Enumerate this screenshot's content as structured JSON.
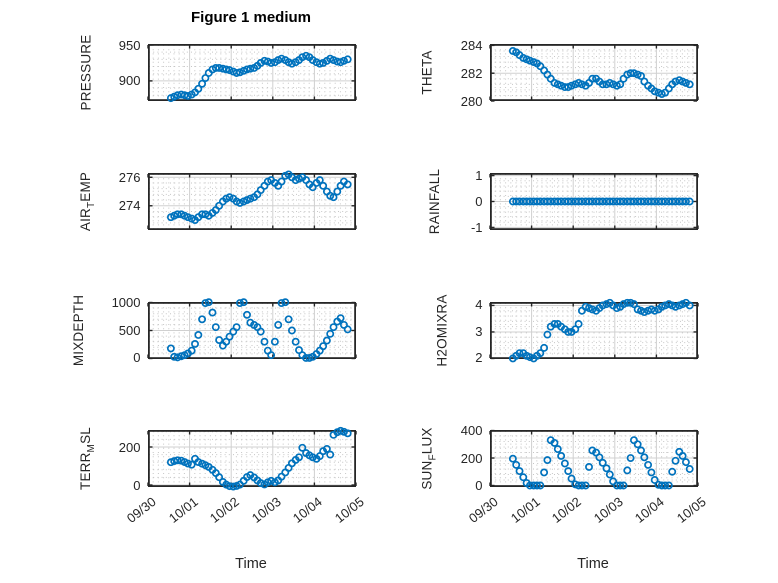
{
  "figure": {
    "title": "Figure 1 medium",
    "xlabel": "Time",
    "background": "#ffffff"
  },
  "style": {
    "marker_color": "#0072BD",
    "axes_color": "#262626",
    "major_grid_color": "#d0d0d0",
    "minor_grid_color": "#c6c6c6",
    "text_color": "#262626",
    "plot_background": "#ffffff"
  },
  "chart_data": {
    "type": "scatter",
    "title": "Figure 1 medium",
    "xlabel": "Time",
    "marker": "o",
    "grid": "major solid + minor dotted",
    "x_tick_labels": [
      "09/30",
      "10/01",
      "10/02",
      "10/03",
      "10/04",
      "10/05"
    ],
    "x_tick_values": [
      0,
      1,
      2,
      3,
      4,
      5
    ],
    "xlim": [
      0,
      5
    ],
    "x_minor_step": 0.125,
    "x_unit": "days since 09/30",
    "x": [
      0.55,
      0.63,
      0.71,
      0.8,
      0.88,
      0.96,
      1.05,
      1.13,
      1.21,
      1.3,
      1.38,
      1.46,
      1.55,
      1.63,
      1.71,
      1.8,
      1.88,
      1.96,
      2.05,
      2.13,
      2.21,
      2.3,
      2.38,
      2.46,
      2.55,
      2.63,
      2.71,
      2.8,
      2.88,
      2.96,
      3.05,
      3.13,
      3.21,
      3.3,
      3.38,
      3.46,
      3.55,
      3.63,
      3.71,
      3.8,
      3.88,
      3.96,
      4.05,
      4.13,
      4.21,
      4.3,
      4.38,
      4.46,
      4.55,
      4.63,
      4.71,
      4.8
    ],
    "subplots": [
      {
        "id": "pressure",
        "label": "PRESSURE",
        "label_parts": [
          {
            "text": "PRESSURE",
            "sub": false
          }
        ],
        "row": 0,
        "col": 0,
        "ylim": [
          872,
          951.4
        ],
        "yticks": [
          900,
          950
        ],
        "y": [
          876,
          878,
          880,
          881,
          880,
          879,
          881,
          884,
          889,
          896,
          904,
          911,
          916,
          918,
          918,
          917,
          916,
          915,
          913,
          911,
          912,
          914,
          916,
          917,
          918,
          921,
          925,
          928,
          927,
          925,
          926,
          929,
          931,
          929,
          926,
          924,
          926,
          929,
          933,
          935,
          933,
          929,
          926,
          924,
          925,
          928,
          931,
          929,
          927,
          926,
          928,
          930
        ]
      },
      {
        "id": "theta",
        "label": "THETA",
        "label_parts": [
          {
            "text": "THETA",
            "sub": false
          }
        ],
        "row": 0,
        "col": 1,
        "ylim": [
          280,
          284.1
        ],
        "yticks": [
          280,
          282,
          284
        ],
        "y": [
          283.6,
          283.5,
          283.3,
          283.1,
          283.0,
          282.9,
          282.8,
          282.7,
          282.5,
          282.2,
          281.9,
          281.6,
          281.3,
          281.2,
          281.1,
          281.0,
          281.0,
          281.1,
          281.2,
          281.3,
          281.2,
          281.1,
          281.3,
          281.6,
          281.6,
          281.4,
          281.2,
          281.2,
          281.3,
          281.2,
          281.1,
          281.2,
          281.6,
          281.9,
          282.0,
          282.0,
          281.9,
          281.8,
          281.4,
          281.1,
          280.9,
          280.7,
          280.6,
          280.5,
          280.6,
          280.9,
          281.2,
          281.4,
          281.5,
          281.4,
          281.3,
          281.2
        ]
      },
      {
        "id": "air-temp",
        "label": "AIR_TEMP",
        "label_parts": [
          {
            "text": "AIR",
            "sub": false
          },
          {
            "text": "T",
            "sub": true
          },
          {
            "text": "EMP",
            "sub": false
          }
        ],
        "row": 1,
        "col": 0,
        "ylim": [
          272.3,
          276.3
        ],
        "yticks": [
          274,
          276
        ],
        "y": [
          273.2,
          273.3,
          273.4,
          273.4,
          273.3,
          273.2,
          273.1,
          273.0,
          273.2,
          273.4,
          273.4,
          273.3,
          273.5,
          273.7,
          274.0,
          274.3,
          274.5,
          274.6,
          274.5,
          274.3,
          274.2,
          274.3,
          274.4,
          274.5,
          274.6,
          274.8,
          275.1,
          275.4,
          275.7,
          275.8,
          275.6,
          275.4,
          275.7,
          276.1,
          276.2,
          276.0,
          275.8,
          275.9,
          276.0,
          275.8,
          275.5,
          275.3,
          275.6,
          275.8,
          275.4,
          275.0,
          274.7,
          274.6,
          275.0,
          275.4,
          275.7,
          275.5
        ]
      },
      {
        "id": "rainfall",
        "label": "RAINFALL",
        "label_parts": [
          {
            "text": "RAINFALL",
            "sub": false
          }
        ],
        "row": 1,
        "col": 1,
        "ylim": [
          -1.1,
          1.1
        ],
        "yticks": [
          -1,
          0,
          1
        ],
        "y": [
          0,
          0,
          0,
          0,
          0,
          0,
          0,
          0,
          0,
          0,
          0,
          0,
          0,
          0,
          0,
          0,
          0,
          0,
          0,
          0,
          0,
          0,
          0,
          0,
          0,
          0,
          0,
          0,
          0,
          0,
          0,
          0,
          0,
          0,
          0,
          0,
          0,
          0,
          0,
          0,
          0,
          0,
          0,
          0,
          0,
          0,
          0,
          0,
          0,
          0,
          0,
          0
        ]
      },
      {
        "id": "mixdepth",
        "label": "MIXDEPTH",
        "label_parts": [
          {
            "text": "MIXDEPTH",
            "sub": false
          }
        ],
        "row": 2,
        "col": 0,
        "ylim": [
          -9,
          1009
        ],
        "yticks": [
          0,
          500,
          1000
        ],
        "y": [
          180,
          30,
          20,
          40,
          60,
          90,
          140,
          260,
          420,
          700,
          990,
          1005,
          820,
          560,
          330,
          230,
          300,
          390,
          480,
          560,
          990,
          1005,
          780,
          640,
          600,
          560,
          480,
          300,
          140,
          60,
          300,
          600,
          990,
          1005,
          700,
          500,
          300,
          150,
          60,
          10,
          10,
          30,
          80,
          140,
          220,
          320,
          440,
          560,
          660,
          720,
          600,
          520
        ]
      },
      {
        "id": "h2omixra",
        "label": "H2OMIXRA",
        "label_parts": [
          {
            "text": "H2OMIXRA",
            "sub": false
          }
        ],
        "row": 2,
        "col": 1,
        "ylim": [
          1.98,
          4.13
        ],
        "yticks": [
          2,
          3,
          4
        ],
        "y": [
          2.0,
          2.1,
          2.2,
          2.2,
          2.1,
          2.05,
          2.0,
          2.1,
          2.2,
          2.4,
          2.9,
          3.2,
          3.3,
          3.3,
          3.2,
          3.1,
          3.0,
          3.0,
          3.1,
          3.3,
          3.8,
          3.95,
          3.9,
          3.85,
          3.8,
          3.9,
          4.0,
          4.05,
          4.1,
          4.0,
          3.9,
          3.95,
          4.05,
          4.1,
          4.1,
          4.05,
          3.85,
          3.8,
          3.75,
          3.8,
          3.85,
          3.8,
          3.85,
          3.95,
          4.0,
          4.05,
          4.0,
          3.95,
          4.0,
          4.05,
          4.1,
          4.0
        ]
      },
      {
        "id": "terr-msl",
        "label": "TERR_MSL",
        "label_parts": [
          {
            "text": "TERR",
            "sub": false
          },
          {
            "text": "M",
            "sub": true
          },
          {
            "text": "SL",
            "sub": false
          }
        ],
        "row": 3,
        "col": 0,
        "ylim": [
          -10.5,
          289.5
        ],
        "yticks": [
          0,
          200
        ],
        "y": [
          120,
          126,
          130,
          128,
          121,
          113,
          107,
          138,
          121,
          112,
          104,
          95,
          80,
          63,
          41,
          16,
          2,
          -6,
          -8,
          -5,
          2,
          22,
          42,
          52,
          40,
          24,
          10,
          3,
          14,
          22,
          14,
          24,
          44,
          66,
          90,
          114,
          132,
          146,
          196,
          168,
          156,
          146,
          138,
          152,
          178,
          190,
          160,
          264,
          278,
          285,
          280,
          272
        ]
      },
      {
        "id": "sun-flux",
        "label": "SUN_FLUX",
        "label_parts": [
          {
            "text": "SUN",
            "sub": false
          },
          {
            "text": "F",
            "sub": true
          },
          {
            "text": "LUX",
            "sub": false
          }
        ],
        "row": 3,
        "col": 1,
        "ylim": [
          -11,
          404
        ],
        "yticks": [
          0,
          200,
          400
        ],
        "y": [
          195,
          150,
          105,
          60,
          18,
          0,
          0,
          0,
          0,
          95,
          185,
          330,
          310,
          265,
          215,
          160,
          105,
          50,
          8,
          0,
          0,
          0,
          135,
          255,
          240,
          205,
          165,
          125,
          80,
          30,
          0,
          0,
          0,
          110,
          200,
          330,
          300,
          255,
          205,
          150,
          95,
          40,
          5,
          0,
          0,
          0,
          100,
          180,
          245,
          215,
          170,
          120
        ]
      }
    ]
  }
}
